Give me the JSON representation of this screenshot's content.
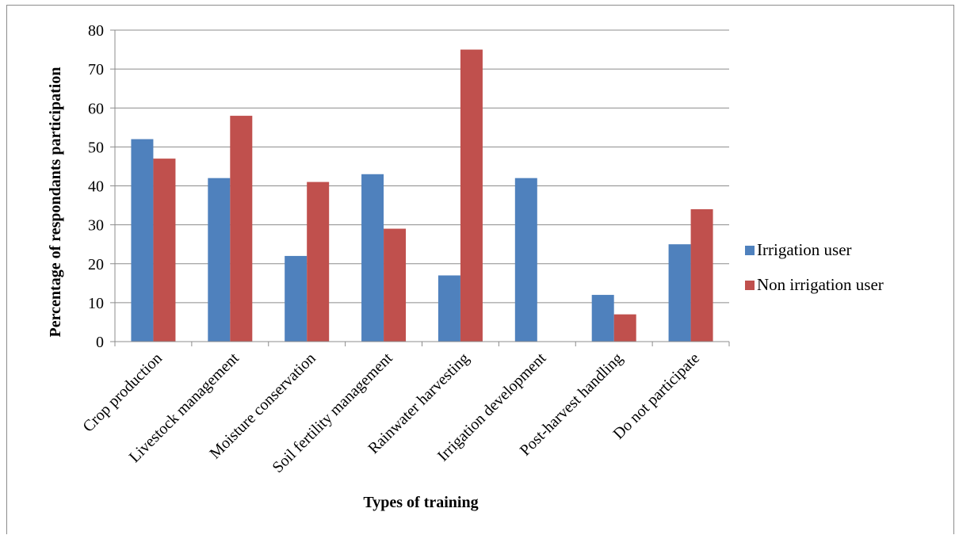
{
  "chart_data": {
    "type": "bar",
    "categories": [
      "Crop production",
      "Livestock management",
      "Moisture conservation",
      "Soil fertility management",
      "Rainwater harvesting",
      "Irrigation  development",
      "Post-harvest handling",
      "Do not participate"
    ],
    "series": [
      {
        "name": "Irrigation user",
        "color": "#4F81BD",
        "values": [
          52,
          42,
          22,
          43,
          17,
          42,
          12,
          25
        ]
      },
      {
        "name": "Non irrigation user",
        "color": "#C0504D",
        "values": [
          47,
          58,
          41,
          29,
          75,
          0,
          7,
          34
        ]
      }
    ],
    "xlabel": "Types of training",
    "ylabel": "Percentage of respondants participation",
    "ylim": [
      0,
      80
    ],
    "yticks": [
      0,
      10,
      20,
      30,
      40,
      50,
      60,
      70,
      80
    ],
    "grid": true,
    "legend": "right"
  }
}
